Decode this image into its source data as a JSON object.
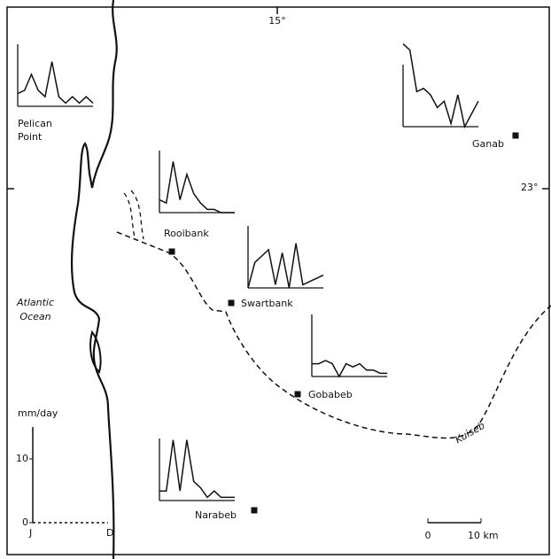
{
  "map": {
    "longitude_label": "15°",
    "latitude_label": "23°",
    "ocean_label": [
      "Atlantic",
      "Ocean"
    ],
    "river_label": "Kuiseb",
    "scale_labels": [
      "0",
      "10 km"
    ],
    "key": {
      "ylabel": "mm/day",
      "ylim": [
        0,
        15
      ],
      "yticks": [
        0,
        10
      ],
      "xlabels": [
        "J",
        "D"
      ]
    },
    "stations": [
      {
        "name": [
          "Pelican",
          "Point"
        ],
        "values": [
          2,
          2.5,
          5,
          2.5,
          1.5,
          7,
          1.5,
          0.5,
          1.5,
          0.5,
          1.5,
          0.5
        ]
      },
      {
        "name": [
          "Ganab"
        ],
        "values": [
          13,
          12,
          5.5,
          6,
          5,
          3,
          4,
          0.5,
          5,
          0,
          2,
          4
        ]
      },
      {
        "name": [
          "Rooibank"
        ],
        "values": [
          2,
          1.5,
          8,
          2,
          6,
          3,
          1.5,
          0.5,
          0.5,
          0,
          0,
          0
        ]
      },
      {
        "name": [
          "Swartbank"
        ],
        "values": [
          0,
          4,
          5,
          6,
          0.5,
          5.5,
          0,
          7,
          0.5,
          1,
          1.5,
          2
        ]
      },
      {
        "name": [
          "Gobabeb"
        ],
        "values": [
          2,
          2,
          2.5,
          2,
          0,
          2,
          1.5,
          2,
          1,
          1,
          0.5,
          0.5
        ]
      },
      {
        "name": [
          "Narabeb"
        ],
        "values": [
          1.5,
          1.5,
          9.5,
          1.5,
          9.5,
          3,
          2,
          0.5,
          1.5,
          0.5,
          0.5,
          0.5
        ]
      }
    ]
  }
}
